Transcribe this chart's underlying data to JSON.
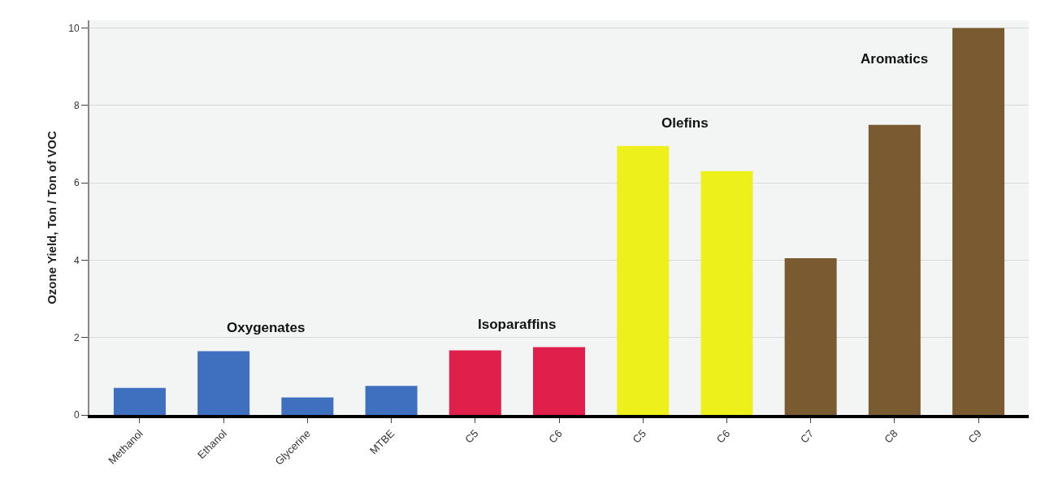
{
  "chart_data": {
    "type": "bar",
    "ylabel": "Ozone Yield, Ton / Ton of VOC",
    "categories": [
      "Methanol",
      "Ethanol",
      "Glycerine",
      "MTBE",
      "C5",
      "C6",
      "C5",
      "C6",
      "C7",
      "C8",
      "C9"
    ],
    "series": [
      {
        "name": "Oxygenates",
        "color": "#3f6fbf",
        "values": [
          0.7,
          1.65,
          0.45,
          0.75,
          null,
          null,
          null,
          null,
          null,
          null,
          null
        ]
      },
      {
        "name": "Isoparaffins",
        "color": "#e0204a",
        "values": [
          null,
          null,
          null,
          null,
          1.67,
          1.75,
          null,
          null,
          null,
          null,
          null
        ]
      },
      {
        "name": "Olefins",
        "color": "#eef01c",
        "values": [
          null,
          null,
          null,
          null,
          null,
          null,
          6.95,
          6.3,
          null,
          null,
          null
        ]
      },
      {
        "name": "Aromatics",
        "color": "#7a5a30",
        "values": [
          null,
          null,
          null,
          null,
          null,
          null,
          null,
          null,
          4.05,
          7.5,
          10.0
        ]
      }
    ],
    "ylim": [
      0,
      10.2
    ],
    "yticks": [
      0,
      2,
      4,
      6,
      8,
      10
    ],
    "grid": "y",
    "legend": false
  }
}
